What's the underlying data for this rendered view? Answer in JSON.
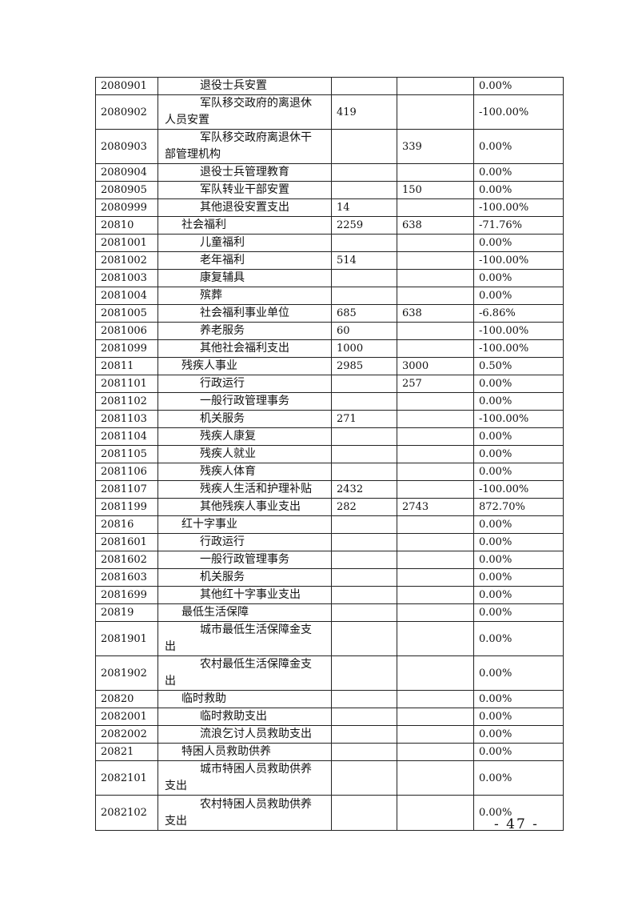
{
  "table": {
    "rows": [
      {
        "code": "2080901",
        "name": "退役士兵安置",
        "level": 2,
        "a": "",
        "b": "",
        "pct": "0.00%"
      },
      {
        "code": "2080902",
        "name": "军队移交政府的离退休人员安置",
        "level": 2,
        "a": "419",
        "b": "",
        "pct": "-100.00%"
      },
      {
        "code": "2080903",
        "name": "军队移交政府离退休干部管理机构",
        "level": 2,
        "a": "",
        "b": "339",
        "pct": "0.00%"
      },
      {
        "code": "2080904",
        "name": "退役士兵管理教育",
        "level": 2,
        "a": "",
        "b": "",
        "pct": "0.00%"
      },
      {
        "code": "2080905",
        "name": "军队转业干部安置",
        "level": 2,
        "a": "",
        "b": "150",
        "pct": "0.00%"
      },
      {
        "code": "2080999",
        "name": "其他退役安置支出",
        "level": 2,
        "a": "14",
        "b": "",
        "pct": "-100.00%"
      },
      {
        "code": "20810",
        "name": "社会福利",
        "level": 1,
        "a": "2259",
        "b": "638",
        "pct": "-71.76%"
      },
      {
        "code": "2081001",
        "name": "儿童福利",
        "level": 2,
        "a": "",
        "b": "",
        "pct": "0.00%"
      },
      {
        "code": "2081002",
        "name": "老年福利",
        "level": 2,
        "a": "514",
        "b": "",
        "pct": "-100.00%"
      },
      {
        "code": "2081003",
        "name": "康复辅具",
        "level": 2,
        "a": "",
        "b": "",
        "pct": "0.00%"
      },
      {
        "code": "2081004",
        "name": "殡葬",
        "level": 2,
        "a": "",
        "b": "",
        "pct": "0.00%"
      },
      {
        "code": "2081005",
        "name": "社会福利事业单位",
        "level": 2,
        "a": "685",
        "b": "638",
        "pct": "-6.86%"
      },
      {
        "code": "2081006",
        "name": "养老服务",
        "level": 2,
        "a": "60",
        "b": "",
        "pct": "-100.00%"
      },
      {
        "code": "2081099",
        "name": "其他社会福利支出",
        "level": 2,
        "a": "1000",
        "b": "",
        "pct": "-100.00%"
      },
      {
        "code": "20811",
        "name": "残疾人事业",
        "level": 1,
        "a": "2985",
        "b": "3000",
        "pct": "0.50%"
      },
      {
        "code": "2081101",
        "name": "行政运行",
        "level": 2,
        "a": "",
        "b": "257",
        "pct": "0.00%"
      },
      {
        "code": "2081102",
        "name": "一般行政管理事务",
        "level": 2,
        "a": "",
        "b": "",
        "pct": "0.00%"
      },
      {
        "code": "2081103",
        "name": "机关服务",
        "level": 2,
        "a": "271",
        "b": "",
        "pct": "-100.00%"
      },
      {
        "code": "2081104",
        "name": "残疾人康复",
        "level": 2,
        "a": "",
        "b": "",
        "pct": "0.00%"
      },
      {
        "code": "2081105",
        "name": "残疾人就业",
        "level": 2,
        "a": "",
        "b": "",
        "pct": "0.00%"
      },
      {
        "code": "2081106",
        "name": "残疾人体育",
        "level": 2,
        "a": "",
        "b": "",
        "pct": "0.00%"
      },
      {
        "code": "2081107",
        "name": "残疾人生活和护理补贴",
        "level": 2,
        "a": "2432",
        "b": "",
        "pct": "-100.00%"
      },
      {
        "code": "2081199",
        "name": "其他残疾人事业支出",
        "level": 2,
        "a": "282",
        "b": "2743",
        "pct": "872.70%"
      },
      {
        "code": "20816",
        "name": "红十字事业",
        "level": 1,
        "a": "",
        "b": "",
        "pct": "0.00%"
      },
      {
        "code": "2081601",
        "name": "行政运行",
        "level": 2,
        "a": "",
        "b": "",
        "pct": "0.00%"
      },
      {
        "code": "2081602",
        "name": "一般行政管理事务",
        "level": 2,
        "a": "",
        "b": "",
        "pct": "0.00%"
      },
      {
        "code": "2081603",
        "name": "机关服务",
        "level": 2,
        "a": "",
        "b": "",
        "pct": "0.00%"
      },
      {
        "code": "2081699",
        "name": "其他红十字事业支出",
        "level": 2,
        "a": "",
        "b": "",
        "pct": "0.00%"
      },
      {
        "code": "20819",
        "name": "最低生活保障",
        "level": 1,
        "a": "",
        "b": "",
        "pct": "0.00%"
      },
      {
        "code": "2081901",
        "name": "城市最低生活保障金支出",
        "level": 2,
        "a": "",
        "b": "",
        "pct": "0.00%"
      },
      {
        "code": "2081902",
        "name": "农村最低生活保障金支出",
        "level": 2,
        "a": "",
        "b": "",
        "pct": "0.00%"
      },
      {
        "code": "20820",
        "name": "临时救助",
        "level": 1,
        "a": "",
        "b": "",
        "pct": "0.00%"
      },
      {
        "code": "2082001",
        "name": "临时救助支出",
        "level": 2,
        "a": "",
        "b": "",
        "pct": "0.00%"
      },
      {
        "code": "2082002",
        "name": "流浪乞讨人员救助支出",
        "level": 2,
        "a": "",
        "b": "",
        "pct": "0.00%"
      },
      {
        "code": "20821",
        "name": "特困人员救助供养",
        "level": 1,
        "a": "",
        "b": "",
        "pct": "0.00%"
      },
      {
        "code": "2082101",
        "name": "城市特困人员救助供养支出",
        "level": 2,
        "a": "",
        "b": "",
        "pct": "0.00%"
      },
      {
        "code": "2082102",
        "name": "农村特困人员救助供养支出",
        "level": 2,
        "a": "",
        "b": "",
        "pct": "0.00%"
      }
    ]
  },
  "footer": {
    "page_number": "- 47 -"
  }
}
